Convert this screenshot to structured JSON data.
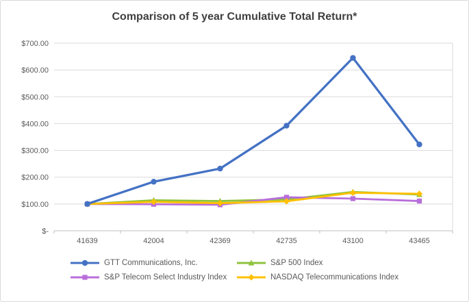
{
  "chart_data": {
    "type": "line",
    "title": "Comparison of 5 year Cumulative Total Return*",
    "xlabel": "",
    "ylabel": "",
    "categories": [
      "41639",
      "42004",
      "42369",
      "42735",
      "43100",
      "43465"
    ],
    "series": [
      {
        "name": "GTT Communications, Inc.",
        "color": "#4472C4",
        "marker": "circle",
        "values": [
          100,
          183,
          232,
          392,
          645,
          322
        ]
      },
      {
        "name": "S&P 500 Index",
        "color": "#8FC33C",
        "marker": "triangle",
        "values": [
          100,
          114,
          111,
          117,
          145,
          135
        ]
      },
      {
        "name": "S&P Telecom Select Industry Index",
        "color": "#B86EDA",
        "marker": "square",
        "values": [
          100,
          99,
          97,
          125,
          120,
          111
        ]
      },
      {
        "name": "NASDAQ Telecommunications Index",
        "color": "#FFC000",
        "marker": "diamond",
        "values": [
          100,
          108,
          103,
          110,
          142,
          138
        ]
      }
    ],
    "ylim": [
      0,
      700
    ],
    "ytick_step": 100,
    "ytick_labels": [
      "$-",
      "$100.00",
      "$200.00",
      "$300.00",
      "$400.00",
      "$500.00",
      "$600.00",
      "$700.00"
    ],
    "grid": true,
    "legend_position": "bottom",
    "colors": {
      "gridline": "#d9d9d9",
      "axis_line": "#bfbfbf",
      "text": "#595959",
      "title": "#3f3f3f",
      "border": "#d9d9d9"
    }
  }
}
